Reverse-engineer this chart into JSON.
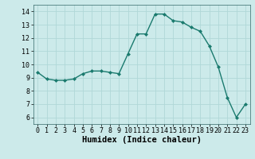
{
  "x": [
    0,
    1,
    2,
    3,
    4,
    5,
    6,
    7,
    8,
    9,
    10,
    11,
    12,
    13,
    14,
    15,
    16,
    17,
    18,
    19,
    20,
    21,
    22,
    23
  ],
  "y": [
    9.4,
    8.9,
    8.8,
    8.8,
    8.9,
    9.3,
    9.5,
    9.5,
    9.4,
    9.3,
    10.8,
    12.3,
    12.3,
    13.8,
    13.8,
    13.3,
    13.2,
    12.8,
    12.5,
    11.4,
    9.8,
    7.5,
    6.0,
    7.0
  ],
  "line_color": "#1a7a6e",
  "marker": "D",
  "marker_size": 2.0,
  "bg_color": "#cceaea",
  "grid_color": "#b0d8d8",
  "xlabel": "Humidex (Indice chaleur)",
  "ylim": [
    5.5,
    14.5
  ],
  "xlim": [
    -0.5,
    23.5
  ],
  "yticks": [
    6,
    7,
    8,
    9,
    10,
    11,
    12,
    13,
    14
  ],
  "xticks": [
    0,
    1,
    2,
    3,
    4,
    5,
    6,
    7,
    8,
    9,
    10,
    11,
    12,
    13,
    14,
    15,
    16,
    17,
    18,
    19,
    20,
    21,
    22,
    23
  ],
  "tick_fontsize": 6,
  "xlabel_fontsize": 7.5
}
